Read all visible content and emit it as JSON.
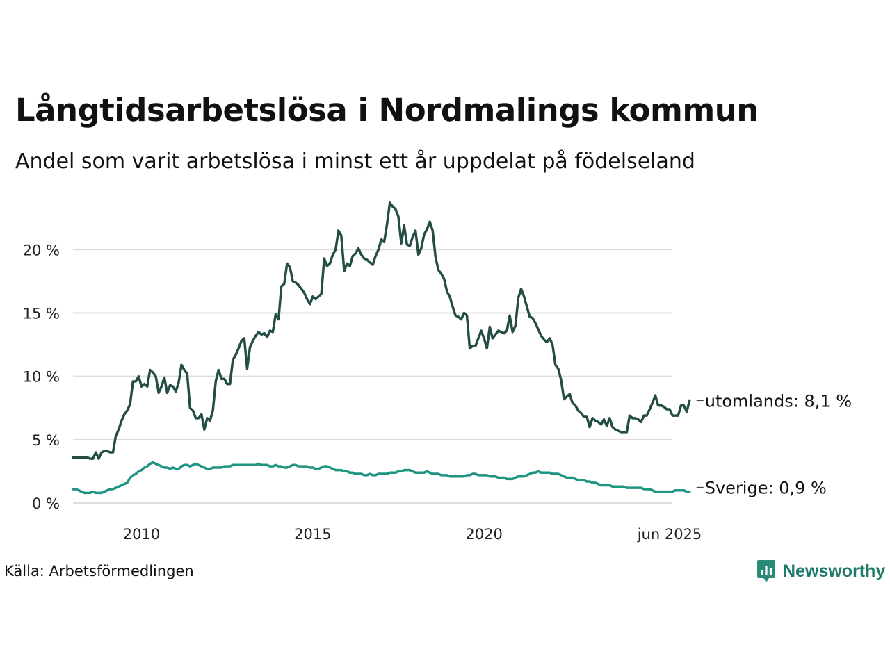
{
  "title": "Långtidsarbetslösa i Nordmalings kommun",
  "subtitle": "Andel som varit arbetslösa i minst ett år uppdelat på födelseland",
  "source": "Källa: Arbetsförmedlingen",
  "brand": {
    "name": "Newsworthy",
    "icon": "newsworthy-logo-icon",
    "color": "#2a8a78"
  },
  "chart_data": {
    "type": "line",
    "x_start": "2008-01",
    "x_end": "2025-06",
    "x_step": "month",
    "xlim": [
      "2008-01",
      "2025-06"
    ],
    "ylim": [
      0,
      23.8
    ],
    "grid": true,
    "xticks": [
      {
        "label": "2010",
        "date": "2010-01"
      },
      {
        "label": "2015",
        "date": "2015-01"
      },
      {
        "label": "2020",
        "date": "2020-01"
      },
      {
        "label": "jun 2025",
        "date": "2025-06"
      }
    ],
    "yticks": [
      {
        "value": 0,
        "label": "0 %"
      },
      {
        "value": 5,
        "label": "5 %"
      },
      {
        "value": 10,
        "label": "10 %"
      },
      {
        "value": 15,
        "label": "15 %"
      },
      {
        "value": 20,
        "label": "20 %"
      }
    ],
    "series": [
      {
        "name": "utomlands",
        "end_label": "utomlands: 8,1 %",
        "color": "#234d45",
        "values": [
          3.6,
          3.6,
          3.6,
          3.6,
          3.6,
          3.6,
          3.5,
          3.5,
          4.0,
          3.5,
          4.0,
          4.1,
          4.1,
          4.0,
          4.0,
          5.3,
          5.8,
          6.5,
          7.0,
          7.3,
          7.8,
          9.6,
          9.6,
          10.0,
          9.2,
          9.4,
          9.2,
          10.5,
          10.3,
          10.0,
          8.7,
          9.2,
          9.9,
          8.7,
          9.3,
          9.2,
          8.8,
          9.5,
          10.9,
          10.5,
          10.2,
          7.5,
          7.3,
          6.7,
          6.7,
          7.0,
          5.8,
          6.7,
          6.5,
          7.3,
          9.6,
          10.5,
          9.8,
          9.8,
          9.4,
          9.4,
          11.3,
          11.7,
          12.2,
          12.8,
          13.0,
          10.6,
          12.3,
          12.8,
          13.2,
          13.5,
          13.3,
          13.4,
          13.1,
          13.6,
          13.5,
          14.9,
          14.5,
          17.1,
          17.3,
          18.9,
          18.6,
          17.5,
          17.4,
          17.2,
          16.9,
          16.6,
          16.1,
          15.7,
          16.3,
          16.1,
          16.3,
          16.5,
          19.3,
          18.7,
          18.9,
          19.6,
          20.0,
          21.5,
          21.1,
          18.3,
          18.9,
          18.7,
          19.5,
          19.7,
          20.1,
          19.6,
          19.3,
          19.2,
          19.0,
          18.8,
          19.5,
          20.0,
          20.8,
          20.6,
          22.0,
          23.7,
          23.4,
          23.2,
          22.6,
          20.5,
          21.9,
          20.4,
          20.3,
          21.0,
          21.5,
          19.6,
          20.1,
          21.2,
          21.6,
          22.2,
          21.5,
          19.4,
          18.4,
          18.1,
          17.7,
          16.7,
          16.3,
          15.5,
          14.8,
          14.7,
          14.5,
          15.0,
          14.8,
          12.2,
          12.4,
          12.4,
          13.0,
          13.6,
          13.0,
          12.2,
          13.9,
          13.0,
          13.3,
          13.6,
          13.5,
          13.4,
          13.6,
          14.8,
          13.5,
          14.0,
          16.2,
          16.9,
          16.3,
          15.5,
          14.7,
          14.6,
          14.2,
          13.7,
          13.2,
          12.9,
          12.7,
          13.0,
          12.5,
          10.9,
          10.6,
          9.7,
          8.2,
          8.4,
          8.6,
          7.9,
          7.7,
          7.3,
          7.1,
          6.8,
          6.8,
          6.0,
          6.7,
          6.5,
          6.4,
          6.2,
          6.6,
          6.1,
          6.7,
          6.0,
          5.8,
          5.7,
          5.6,
          5.6,
          5.6,
          6.9,
          6.7,
          6.7,
          6.6,
          6.4,
          6.9,
          6.9,
          7.4,
          7.9,
          8.5,
          7.7,
          7.7,
          7.6,
          7.4,
          7.4,
          6.9,
          6.9,
          6.9,
          7.7,
          7.7,
          7.2,
          8.1
        ]
      },
      {
        "name": "Sverige",
        "end_label": "Sverige: 0,9 %",
        "color": "#1f9483",
        "values": [
          1.1,
          1.1,
          1.0,
          0.9,
          0.8,
          0.8,
          0.8,
          0.9,
          0.8,
          0.8,
          0.8,
          0.9,
          1.0,
          1.1,
          1.1,
          1.2,
          1.3,
          1.4,
          1.5,
          1.6,
          2.0,
          2.2,
          2.3,
          2.5,
          2.6,
          2.8,
          2.9,
          3.1,
          3.2,
          3.1,
          3.0,
          2.9,
          2.8,
          2.8,
          2.7,
          2.8,
          2.7,
          2.7,
          2.9,
          3.0,
          3.0,
          2.9,
          3.0,
          3.1,
          3.0,
          2.9,
          2.8,
          2.7,
          2.7,
          2.8,
          2.8,
          2.8,
          2.8,
          2.9,
          2.9,
          2.9,
          3.0,
          3.0,
          3.0,
          3.0,
          3.0,
          3.0,
          3.0,
          3.0,
          3.0,
          3.1,
          3.0,
          3.0,
          3.0,
          2.9,
          2.9,
          3.0,
          2.9,
          2.9,
          2.8,
          2.8,
          2.9,
          3.0,
          3.0,
          2.9,
          2.9,
          2.9,
          2.9,
          2.8,
          2.8,
          2.7,
          2.7,
          2.8,
          2.9,
          2.9,
          2.8,
          2.7,
          2.6,
          2.6,
          2.6,
          2.5,
          2.5,
          2.4,
          2.4,
          2.3,
          2.3,
          2.3,
          2.2,
          2.2,
          2.3,
          2.2,
          2.2,
          2.3,
          2.3,
          2.3,
          2.3,
          2.4,
          2.4,
          2.4,
          2.5,
          2.5,
          2.6,
          2.6,
          2.6,
          2.5,
          2.4,
          2.4,
          2.4,
          2.4,
          2.5,
          2.4,
          2.3,
          2.3,
          2.3,
          2.2,
          2.2,
          2.2,
          2.1,
          2.1,
          2.1,
          2.1,
          2.1,
          2.1,
          2.2,
          2.2,
          2.3,
          2.3,
          2.2,
          2.2,
          2.2,
          2.2,
          2.1,
          2.1,
          2.1,
          2.0,
          2.0,
          2.0,
          1.9,
          1.9,
          1.9,
          2.0,
          2.1,
          2.1,
          2.1,
          2.2,
          2.3,
          2.4,
          2.4,
          2.5,
          2.4,
          2.4,
          2.4,
          2.4,
          2.3,
          2.3,
          2.3,
          2.2,
          2.1,
          2.0,
          2.0,
          2.0,
          1.9,
          1.8,
          1.8,
          1.8,
          1.7,
          1.7,
          1.6,
          1.6,
          1.5,
          1.4,
          1.4,
          1.4,
          1.4,
          1.3,
          1.3,
          1.3,
          1.3,
          1.3,
          1.2,
          1.2,
          1.2,
          1.2,
          1.2,
          1.2,
          1.1,
          1.1,
          1.1,
          1.0,
          0.9,
          0.9,
          0.9,
          0.9,
          0.9,
          0.9,
          0.9,
          1.0,
          1.0,
          1.0,
          1.0,
          0.9,
          0.9
        ]
      }
    ]
  }
}
